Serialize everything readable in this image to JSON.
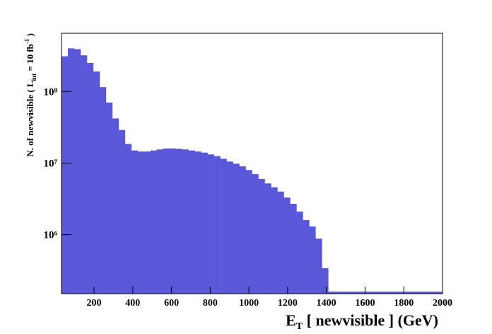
{
  "chart_data": {
    "type": "histogram",
    "x_label": "E",
    "x_label_sub": "T",
    "x_label_rest": " [ newvisible ] (GeV)",
    "y_label": "N. of newvisible ( L",
    "y_label_sub": "int",
    "y_label_mid": " = 10 fb",
    "y_label_sup": "-1",
    "y_label_end": " )",
    "color": "#5a58d8",
    "log_y": true,
    "xlim": [
      32,
      2000
    ],
    "xticks": [
      200,
      400,
      600,
      800,
      1000,
      1200,
      1400,
      1600,
      1800,
      2000
    ],
    "ylim": [
      150000,
      650000000
    ],
    "yticks": [
      {
        "value": 1000000,
        "label": "10⁶"
      },
      {
        "value": 10000000,
        "label": "10⁷"
      },
      {
        "value": 100000000,
        "label": "10⁸"
      }
    ],
    "bins": [
      32,
      64.8,
      97.6,
      130.4,
      163.2,
      196,
      228.8,
      261.6,
      294.4,
      327.2,
      360,
      392.8,
      425.6,
      458.4,
      491.2,
      524,
      556.8,
      589.6,
      622.4,
      655.2,
      688,
      720.8,
      753.6,
      786.4,
      819.2,
      852,
      884.8,
      917.6,
      950.4,
      983.2,
      1016,
      1048.8,
      1081.6,
      1114.4,
      1147.2,
      1180,
      1212.8,
      1245.6,
      1278.4,
      1311.2,
      1344,
      1376.8,
      1409.6,
      1442.4,
      1475.2,
      1508,
      1540.8,
      1573.6,
      1606.4,
      1639.2,
      1672,
      1704.8,
      1737.6,
      1770.4,
      1803.2,
      1836,
      1868.8,
      1901.6,
      1934.4,
      1967.2,
      2000
    ],
    "values": [
      310000000,
      400000000,
      390000000,
      320000000,
      250000000,
      190000000,
      115000000,
      70000000,
      42000000,
      29000000,
      18500000,
      15000000,
      14500000,
      14500000,
      15000000,
      15500000,
      16000000,
      16000000,
      15800000,
      15500000,
      15000000,
      14500000,
      14000000,
      13200000,
      12500000,
      11500000,
      10500000,
      9800000,
      9000000,
      8000000,
      7000000,
      6000000,
      5200000,
      4600000,
      4000000,
      3300000,
      2700000,
      2100000,
      1600000,
      1300000,
      880000,
      340000,
      160000,
      160000,
      160000,
      160000,
      160000,
      160000,
      160000,
      160000,
      160000,
      160000,
      160000,
      160000,
      160000,
      160000,
      160000,
      160000,
      160000,
      160000
    ]
  }
}
